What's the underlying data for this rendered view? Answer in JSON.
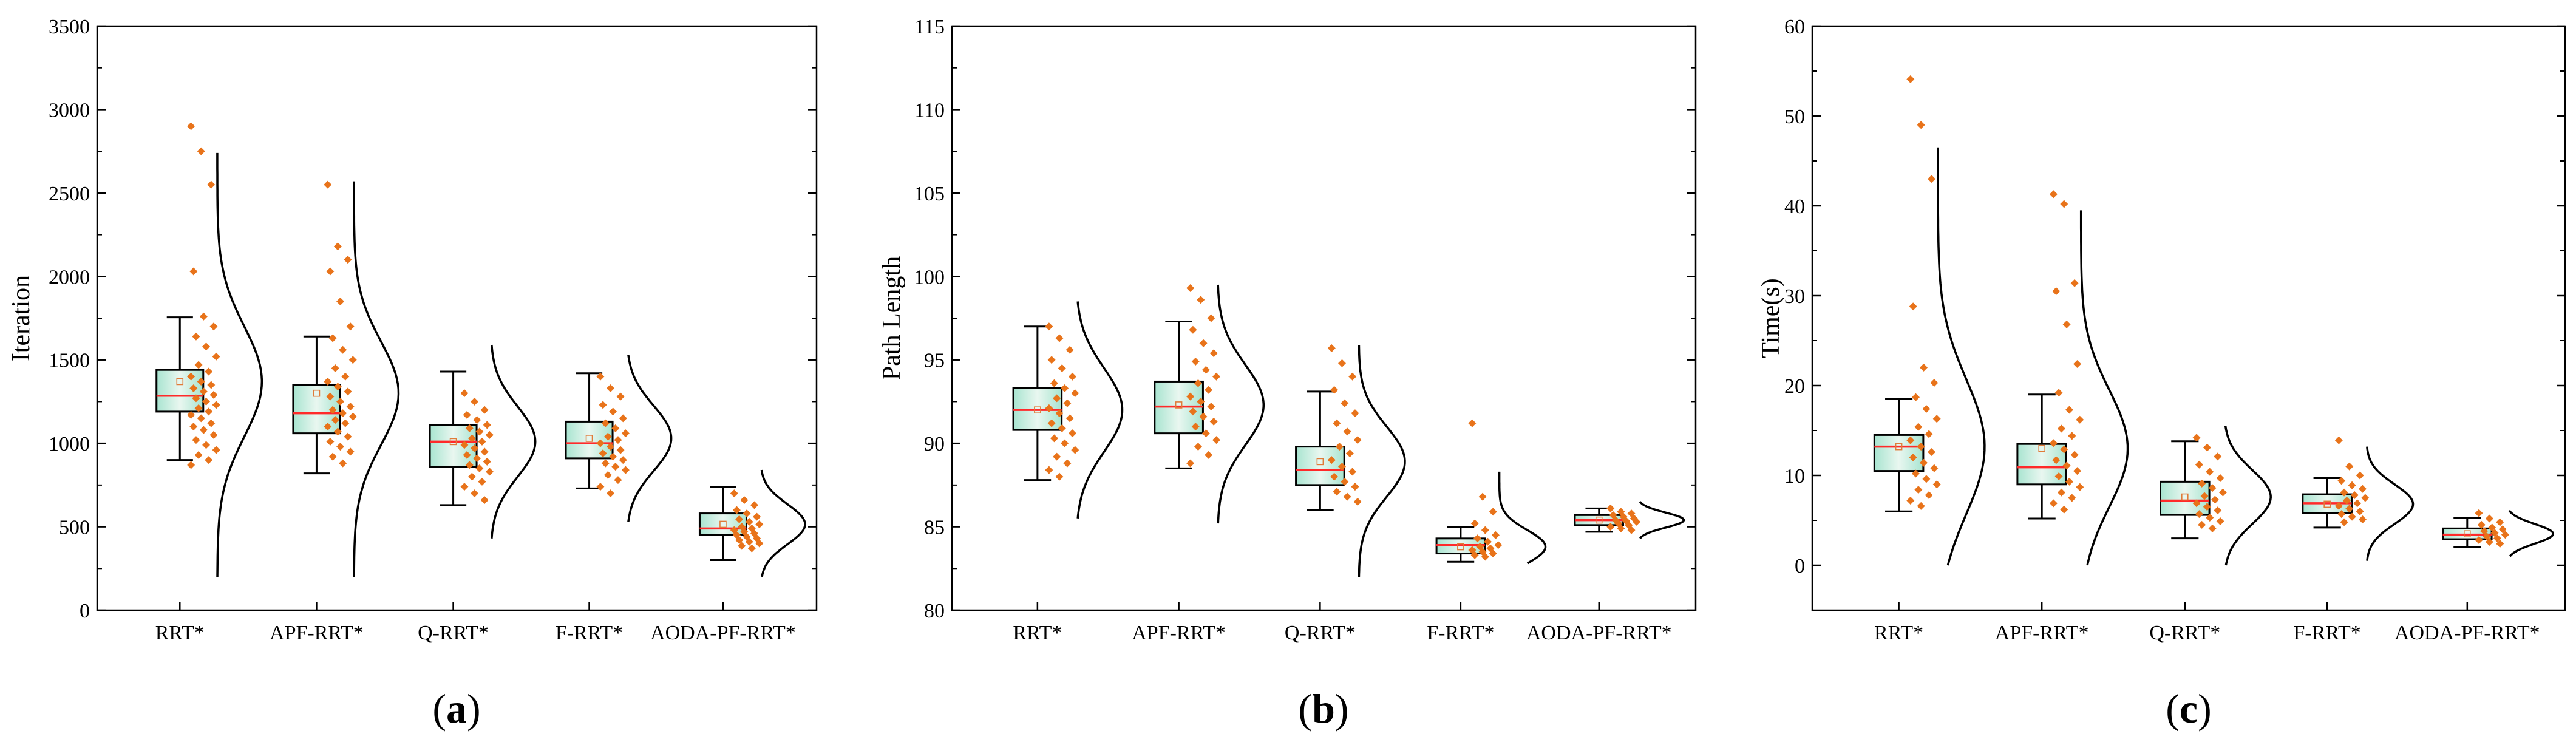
{
  "colors": {
    "box_fill_center": "#e9f7f0",
    "box_fill_edge": "#a8e4d0",
    "median": "#ff2a2a",
    "mean_marker": "#e07b39",
    "scatter": "#e8731a",
    "curve": "#000000",
    "axis": "#000000"
  },
  "chart_data": [
    {
      "type": "box",
      "panel_label": {
        "open": "(",
        "letter": "a",
        "close": ")"
      },
      "title": "",
      "xlabel": "",
      "ylabel": "Iteration",
      "ylim": [
        0,
        3500
      ],
      "yticks": [
        0,
        500,
        1000,
        1500,
        2000,
        2500,
        3000,
        3500
      ],
      "ytick_labels": [
        "0",
        "500",
        "1000",
        "1500",
        "2000",
        "2500",
        "3000",
        "3500"
      ],
      "categories": [
        "RRT*",
        "APF-RRT*",
        "Q-RRT*",
        "F-RRT*",
        "AODA-PF-RRT*"
      ],
      "boxes": [
        {
          "whisker_low": 900,
          "q1": 1190,
          "median": 1285,
          "q3": 1440,
          "whisker_high": 1755,
          "mean": 1370
        },
        {
          "whisker_low": 820,
          "q1": 1060,
          "median": 1180,
          "q3": 1350,
          "whisker_high": 1640,
          "mean": 1300
        },
        {
          "whisker_low": 630,
          "q1": 860,
          "median": 1010,
          "q3": 1110,
          "whisker_high": 1430,
          "mean": 1010
        },
        {
          "whisker_low": 730,
          "q1": 910,
          "median": 1000,
          "q3": 1130,
          "whisker_high": 1420,
          "mean": 1030
        },
        {
          "whisker_low": 300,
          "q1": 450,
          "median": 490,
          "q3": 580,
          "whisker_high": 740,
          "mean": 515
        }
      ],
      "points": [
        [
          2900,
          2750,
          2550,
          2030,
          1760,
          1700,
          1640,
          1580,
          1520,
          1470,
          1430,
          1400,
          1370,
          1350,
          1330,
          1310,
          1290,
          1270,
          1250,
          1230,
          1210,
          1190,
          1170,
          1150,
          1120,
          1100,
          1080,
          1050,
          1020,
          990,
          960,
          930,
          900,
          870
        ],
        [
          2550,
          2180,
          2100,
          2030,
          1850,
          1700,
          1630,
          1560,
          1500,
          1450,
          1400,
          1370,
          1340,
          1310,
          1280,
          1250,
          1220,
          1200,
          1180,
          1160,
          1140,
          1120,
          1100,
          1070,
          1040,
          1010,
          980,
          950,
          920,
          880
        ],
        [
          1300,
          1250,
          1200,
          1170,
          1140,
          1110,
          1090,
          1070,
          1050,
          1030,
          1010,
          990,
          970,
          950,
          930,
          910,
          890,
          870,
          850,
          830,
          800,
          770,
          740,
          700,
          660
        ],
        [
          1400,
          1330,
          1280,
          1230,
          1190,
          1150,
          1120,
          1090,
          1060,
          1040,
          1020,
          1000,
          980,
          960,
          940,
          920,
          900,
          880,
          860,
          840,
          810,
          780,
          740,
          700
        ],
        [
          700,
          660,
          630,
          600,
          580,
          560,
          545,
          530,
          515,
          500,
          490,
          480,
          470,
          460,
          450,
          440,
          430,
          420,
          410,
          400,
          385,
          370
        ]
      ],
      "curves": [
        {
          "mean": 1370,
          "sd": 330,
          "low": 200,
          "high": 2740
        },
        {
          "mean": 1300,
          "sd": 310,
          "low": 200,
          "high": 2570
        },
        {
          "mean": 1010,
          "sd": 210,
          "low": 430,
          "high": 1590
        },
        {
          "mean": 1030,
          "sd": 195,
          "low": 530,
          "high": 1530
        },
        {
          "mean": 515,
          "sd": 120,
          "low": 200,
          "high": 840
        }
      ]
    },
    {
      "type": "box",
      "panel_label": {
        "open": "(",
        "letter": "b",
        "close": ")"
      },
      "title": "",
      "xlabel": "",
      "ylabel": "Path Length",
      "ylim": [
        80,
        115
      ],
      "yticks": [
        80,
        85,
        90,
        95,
        100,
        105,
        110,
        115
      ],
      "ytick_labels": [
        "80",
        "85",
        "90",
        "95",
        "100",
        "105",
        "110",
        "115"
      ],
      "categories": [
        "RRT*",
        "APF-RRT*",
        "Q-RRT*",
        "F-RRT*",
        "AODA-PF-RRT*"
      ],
      "boxes": [
        {
          "whisker_low": 87.8,
          "q1": 90.8,
          "median": 92.0,
          "q3": 93.3,
          "whisker_high": 97.0,
          "mean": 92.0
        },
        {
          "whisker_low": 88.5,
          "q1": 90.6,
          "median": 92.2,
          "q3": 93.7,
          "whisker_high": 97.3,
          "mean": 92.3
        },
        {
          "whisker_low": 86.0,
          "q1": 87.5,
          "median": 88.4,
          "q3": 89.8,
          "whisker_high": 93.1,
          "mean": 88.9
        },
        {
          "whisker_low": 82.9,
          "q1": 83.4,
          "median": 83.9,
          "q3": 84.3,
          "whisker_high": 85.0,
          "mean": 83.8
        },
        {
          "whisker_low": 84.7,
          "q1": 85.1,
          "median": 85.4,
          "q3": 85.7,
          "whisker_high": 86.1,
          "mean": 85.4
        }
      ],
      "points": [
        [
          97.0,
          96.3,
          95.6,
          95.0,
          94.5,
          94.0,
          93.6,
          93.3,
          93.0,
          92.7,
          92.4,
          92.1,
          91.8,
          91.5,
          91.2,
          90.9,
          90.6,
          90.3,
          90.0,
          89.6,
          89.2,
          88.8,
          88.4,
          88.0
        ],
        [
          99.3,
          98.6,
          97.5,
          96.8,
          96.0,
          95.4,
          94.9,
          94.4,
          94.0,
          93.6,
          93.2,
          92.8,
          92.5,
          92.2,
          91.9,
          91.6,
          91.3,
          91.0,
          90.6,
          90.2,
          89.8,
          89.3,
          88.8
        ],
        [
          95.7,
          94.8,
          94.0,
          93.2,
          92.4,
          91.8,
          91.2,
          90.7,
          90.2,
          89.8,
          89.4,
          89.0,
          88.6,
          88.3,
          88.0,
          87.7,
          87.4,
          87.1,
          86.8,
          86.5
        ],
        [
          91.2,
          86.8,
          85.9,
          85.2,
          84.8,
          84.5,
          84.3,
          84.1,
          83.9,
          83.8,
          83.7,
          83.6,
          83.5,
          83.4,
          83.3,
          83.2
        ],
        [
          86.1,
          85.9,
          85.8,
          85.7,
          85.6,
          85.5,
          85.4,
          85.35,
          85.3,
          85.2,
          85.1,
          85.0,
          84.9,
          84.8
        ]
      ],
      "curves": [
        {
          "mean": 92.0,
          "sd": 2.5,
          "low": 85.5,
          "high": 98.5
        },
        {
          "mean": 92.3,
          "sd": 2.4,
          "low": 85.2,
          "high": 99.5
        },
        {
          "mean": 88.9,
          "sd": 2.1,
          "low": 82.0,
          "high": 95.9
        },
        {
          "mean": 83.8,
          "sd": 1.0,
          "low": 82.8,
          "high": 88.3
        },
        {
          "mean": 85.4,
          "sd": 0.45,
          "low": 84.3,
          "high": 86.5
        }
      ]
    },
    {
      "type": "box",
      "panel_label": {
        "open": "(",
        "letter": "c",
        "close": ")"
      },
      "title": "",
      "xlabel": "",
      "ylabel": "Time(s)",
      "ylim": [
        -5,
        60
      ],
      "yticks": [
        0,
        10,
        20,
        30,
        40,
        50,
        60
      ],
      "ytick_labels": [
        "0",
        "10",
        "20",
        "30",
        "40",
        "50",
        "60"
      ],
      "categories": [
        "RRT*",
        "APF-RRT*",
        "Q-RRT*",
        "F-RRT*",
        "AODA-PF-RRT*"
      ],
      "boxes": [
        {
          "whisker_low": 6.0,
          "q1": 10.5,
          "median": 13.2,
          "q3": 14.5,
          "whisker_high": 18.5,
          "mean": 13.2
        },
        {
          "whisker_low": 5.2,
          "q1": 9.0,
          "median": 10.9,
          "q3": 13.5,
          "whisker_high": 19.0,
          "mean": 13.0
        },
        {
          "whisker_low": 3.0,
          "q1": 5.6,
          "median": 7.2,
          "q3": 9.3,
          "whisker_high": 13.8,
          "mean": 7.6
        },
        {
          "whisker_low": 4.2,
          "q1": 5.8,
          "median": 6.9,
          "q3": 7.9,
          "whisker_high": 9.7,
          "mean": 6.8
        },
        {
          "whisker_low": 2.0,
          "q1": 2.9,
          "median": 3.4,
          "q3": 4.1,
          "whisker_high": 5.3,
          "mean": 3.5
        }
      ],
      "points": [
        [
          54.1,
          49.0,
          43.0,
          28.8,
          22.0,
          20.3,
          18.7,
          17.4,
          16.3,
          15.4,
          14.6,
          13.9,
          13.2,
          12.6,
          12.0,
          11.4,
          10.8,
          10.2,
          9.6,
          9.0,
          8.4,
          7.8,
          7.2,
          6.6
        ],
        [
          41.3,
          40.2,
          31.4,
          30.5,
          26.8,
          22.4,
          19.2,
          17.3,
          16.2,
          15.2,
          14.4,
          13.6,
          12.9,
          12.3,
          11.7,
          11.1,
          10.5,
          9.9,
          9.3,
          8.7,
          8.1,
          7.5,
          6.9,
          6.2
        ],
        [
          14.2,
          13.1,
          12.1,
          11.2,
          10.4,
          9.7,
          9.1,
          8.6,
          8.1,
          7.7,
          7.3,
          6.9,
          6.5,
          6.1,
          5.7,
          5.3,
          4.9,
          4.5,
          4.1
        ],
        [
          13.9,
          11.0,
          10.0,
          9.4,
          8.9,
          8.5,
          8.1,
          7.8,
          7.5,
          7.2,
          6.9,
          6.6,
          6.3,
          6.0,
          5.7,
          5.4,
          5.1,
          4.8
        ],
        [
          5.8,
          5.2,
          4.8,
          4.5,
          4.2,
          4.0,
          3.8,
          3.6,
          3.4,
          3.2,
          3.0,
          2.8,
          2.6,
          2.4
        ]
      ],
      "curves": [
        {
          "mean": 13.2,
          "sd": 7.5,
          "low": 0,
          "high": 46.5
        },
        {
          "mean": 13.0,
          "sd": 6.5,
          "low": 0,
          "high": 39.5
        },
        {
          "mean": 7.6,
          "sd": 3.0,
          "low": 0,
          "high": 15.5
        },
        {
          "mean": 6.8,
          "sd": 2.2,
          "low": 0.5,
          "high": 13.2
        },
        {
          "mean": 3.5,
          "sd": 1.1,
          "low": 1.0,
          "high": 6.1
        }
      ]
    }
  ]
}
